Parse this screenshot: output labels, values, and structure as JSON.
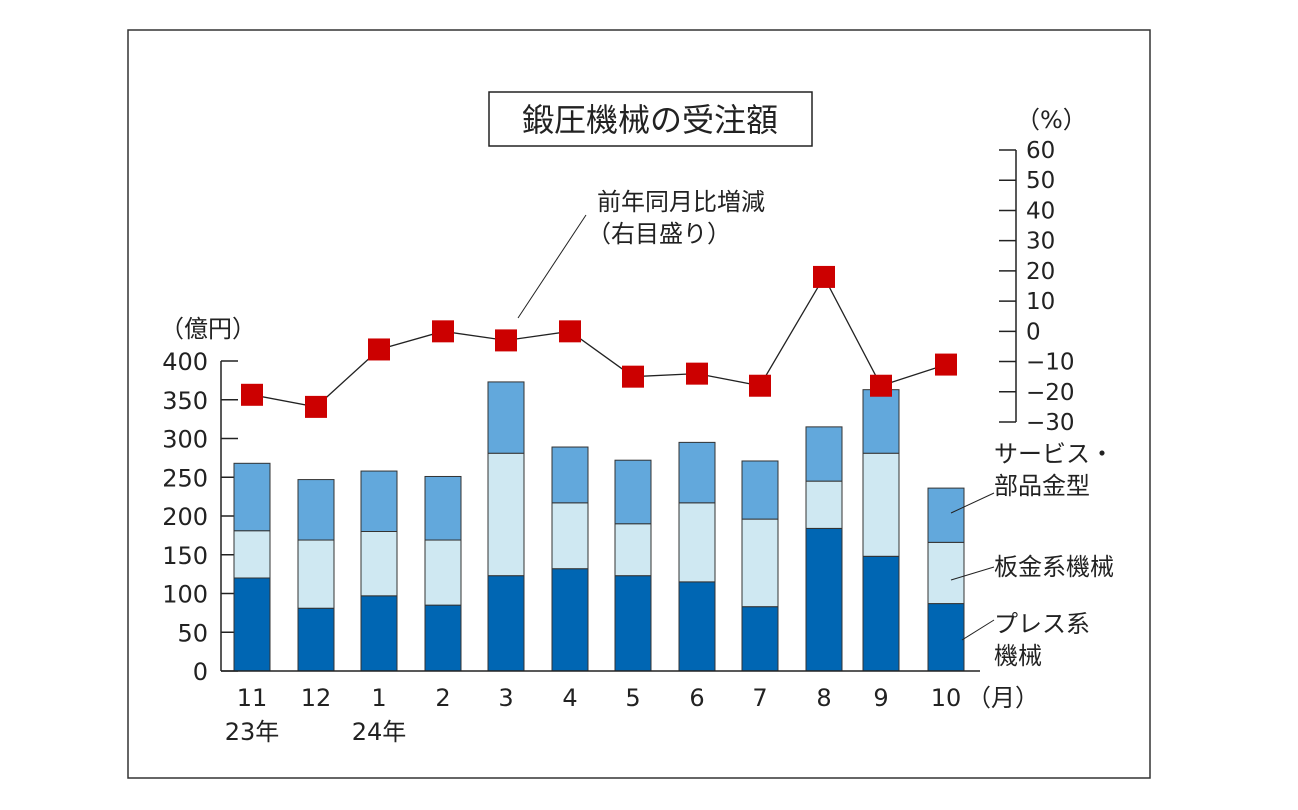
{
  "chart_data": {
    "type": "bar",
    "stacked": true,
    "title": "鍛圧機械の受注額",
    "categories": [
      "11",
      "12",
      "1",
      "2",
      "3",
      "4",
      "5",
      "6",
      "7",
      "8",
      "9",
      "10"
    ],
    "year_labels": [
      {
        "category": "11",
        "text": "23年"
      },
      {
        "category": "1",
        "text": "24年"
      }
    ],
    "x_unit": "（月）",
    "y_unit": "（億円）",
    "ylim": [
      0,
      400
    ],
    "yticks": [
      0,
      50,
      100,
      150,
      200,
      250,
      300,
      350,
      400
    ],
    "y2_unit": "（%）",
    "y2lim": [
      -30,
      60
    ],
    "y2ticks": [
      60,
      50,
      40,
      30,
      20,
      10,
      0,
      -10,
      -20,
      -30
    ],
    "series": [
      {
        "name": "プレス系機械",
        "label_lines": [
          "プレス系",
          "機械"
        ],
        "color": "#0066b3",
        "values": [
          120,
          81,
          97,
          85,
          123,
          132,
          123,
          115,
          83,
          184,
          148,
          87
        ]
      },
      {
        "name": "板金系機械",
        "label_lines": [
          "板金系機械"
        ],
        "color": "#cfe8f2",
        "values": [
          61,
          88,
          83,
          84,
          158,
          85,
          67,
          102,
          113,
          61,
          133,
          79
        ]
      },
      {
        "name": "サービス・部品金型",
        "label_lines": [
          "サービス・",
          "部品金型"
        ],
        "color": "#62a8dc",
        "values": [
          87,
          78,
          78,
          82,
          92,
          72,
          82,
          78,
          75,
          70,
          82,
          70
        ]
      }
    ],
    "line": {
      "name": "前年同月比増減",
      "label_lines": [
        "前年同月比増減",
        "（右目盛り）"
      ],
      "axis": "right",
      "marker_color": "#cc0000",
      "values": [
        -21,
        -25,
        -6,
        0,
        -3,
        0,
        -15,
        -14,
        -18,
        18,
        -18,
        -11
      ]
    },
    "grid": false,
    "legend": "direct labels on right"
  }
}
